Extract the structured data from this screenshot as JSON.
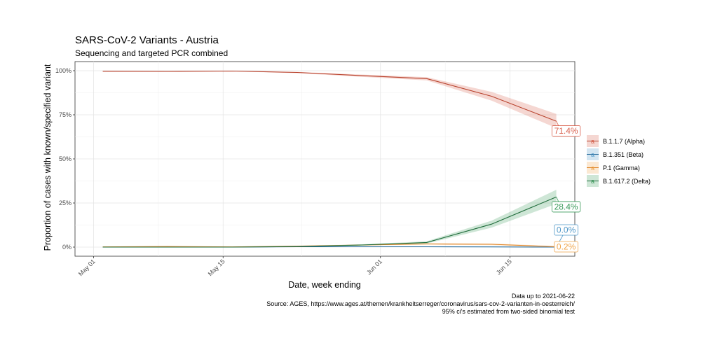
{
  "chart_data": {
    "type": "line",
    "title": "SARS-CoV-2 Variants - Austria",
    "subtitle": "Sequencing and targeted PCR combined",
    "xlabel": "Date, week ending",
    "ylabel": "Proportion of cases with known/specified variant",
    "x_ticks": [
      "May 01",
      "May 15",
      "Jun 01",
      "Jun 15"
    ],
    "x_tick_dates": [
      "2021-05-01",
      "2021-05-15",
      "2021-06-01",
      "2021-06-15"
    ],
    "y_ticks": [
      "0%",
      "25%",
      "50%",
      "75%",
      "100%"
    ],
    "ylim": [
      0,
      1
    ],
    "xlim": [
      "2021-04-29",
      "2021-06-22"
    ],
    "grid": true,
    "legend_position": "right",
    "x": [
      "2021-05-02",
      "2021-05-09",
      "2021-05-16",
      "2021-05-23",
      "2021-05-30",
      "2021-06-06",
      "2021-06-13",
      "2021-06-20"
    ],
    "series": [
      {
        "name": "B.1.1.7 (Alpha)",
        "color": "#d9604d",
        "line_color": "#b8422d",
        "values": [
          0.997,
          0.996,
          0.998,
          0.99,
          0.972,
          0.955,
          0.855,
          0.714
        ],
        "lower": [
          0.994,
          0.993,
          0.996,
          0.986,
          0.965,
          0.945,
          0.83,
          0.675
        ],
        "upper": [
          0.999,
          0.998,
          0.999,
          0.993,
          0.978,
          0.963,
          0.88,
          0.755
        ],
        "end_label": "71.4%"
      },
      {
        "name": "B.1.351 (Beta)",
        "color": "#4e97c8",
        "line_color": "#2c6f9e",
        "values": [
          0.0,
          0.0,
          0.0,
          0.002,
          0.002,
          0.002,
          0.001,
          0.0
        ],
        "lower": [
          0.0,
          0.0,
          0.0,
          0.0,
          0.0,
          0.0,
          0.0,
          0.0
        ],
        "upper": [
          0.002,
          0.002,
          0.002,
          0.004,
          0.004,
          0.004,
          0.003,
          0.002
        ],
        "end_label": "0.0%"
      },
      {
        "name": "P.1 (Gamma)",
        "color": "#f0a54a",
        "line_color": "#e0862a",
        "values": [
          0.001,
          0.003,
          0.001,
          0.005,
          0.012,
          0.018,
          0.016,
          0.002
        ],
        "lower": [
          0.0,
          0.001,
          0.0,
          0.003,
          0.009,
          0.014,
          0.011,
          0.0
        ],
        "upper": [
          0.003,
          0.005,
          0.003,
          0.008,
          0.015,
          0.022,
          0.021,
          0.006
        ],
        "end_label": "0.2%"
      },
      {
        "name": "B.1.617.2 (Delta)",
        "color": "#3a9a5a",
        "line_color": "#1e6b3a",
        "values": [
          0.0,
          0.0,
          0.0,
          0.003,
          0.012,
          0.026,
          0.13,
          0.284
        ],
        "lower": [
          0.0,
          0.0,
          0.0,
          0.001,
          0.008,
          0.02,
          0.11,
          0.245
        ],
        "upper": [
          0.002,
          0.002,
          0.002,
          0.005,
          0.016,
          0.033,
          0.15,
          0.325
        ],
        "end_label": "28.4%"
      }
    ],
    "caption_lines": [
      "Data up to 2021-06-22",
      "Source: AGES, https://www.ages.at/themen/krankheitserreger/coronavirus/sars-cov-2-varianten-in-oesterreich/",
      "95% ci's estimated from two-sided binomial test"
    ]
  }
}
